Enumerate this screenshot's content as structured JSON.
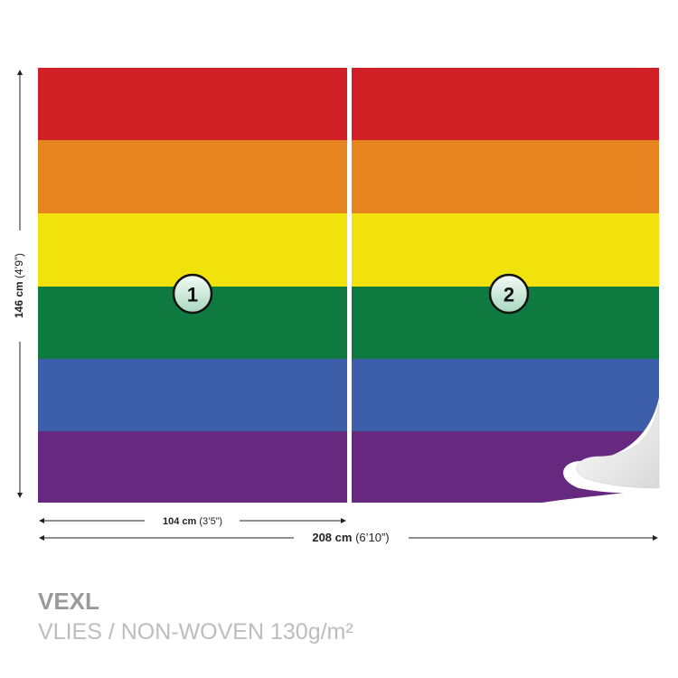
{
  "dimensions": {
    "height": {
      "metric": "146 cm",
      "imperial": "(4’9”)"
    },
    "panel_width": {
      "metric": "104 cm",
      "imperial": "(3’5”)"
    },
    "total_width": {
      "metric": "208 cm",
      "imperial": "(6’10”)"
    }
  },
  "panels": [
    "1",
    "2"
  ],
  "product": {
    "code": "VEXL",
    "material": "VLIES / NON-WOVEN 130g/m²"
  }
}
